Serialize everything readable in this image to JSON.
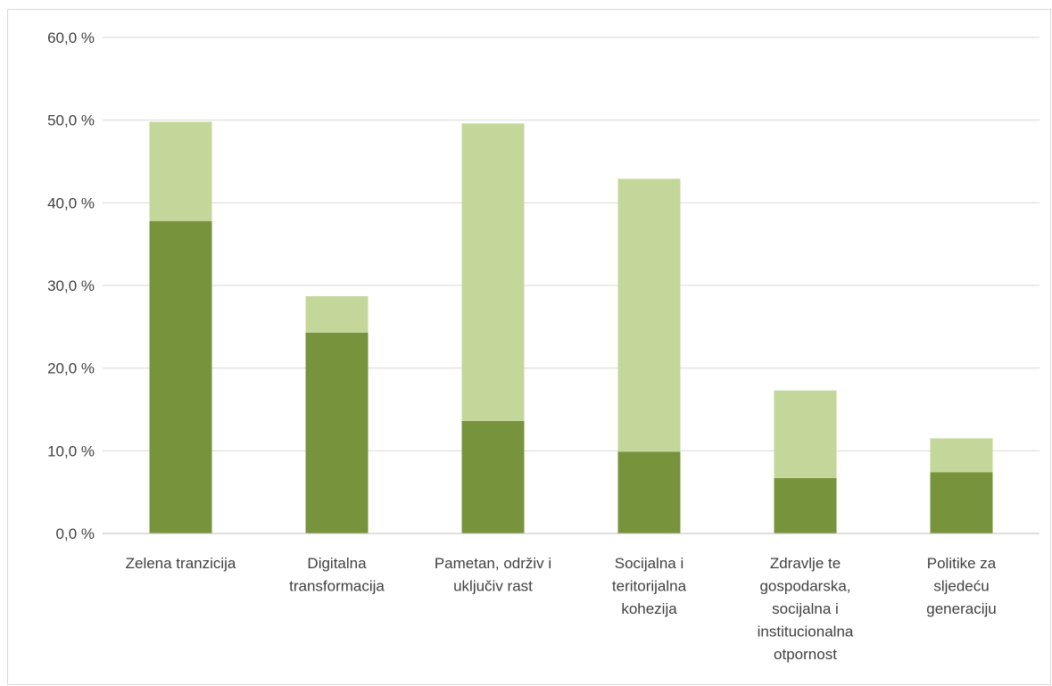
{
  "chart_data": {
    "type": "bar",
    "stacked": true,
    "categories": [
      [
        "Zelena tranzicija"
      ],
      [
        "Digitalna",
        "transformacija"
      ],
      [
        "Pametan, održiv i",
        "uključiv rast"
      ],
      [
        "Socijalna i",
        "teritorijalna",
        "kohezija"
      ],
      [
        "Zdravlje te",
        "gospodarska,",
        "socijalna i",
        "institucionalna",
        "otpornost"
      ],
      [
        "Politike za",
        "sljedeću",
        "generaciju"
      ]
    ],
    "series": [
      {
        "color": "#77933c",
        "values": [
          37.8,
          24.3,
          13.6,
          9.9,
          6.7,
          7.4
        ]
      },
      {
        "color": "#c4d79b",
        "values": [
          12.0,
          4.4,
          36.0,
          33.0,
          10.6,
          4.1
        ]
      }
    ],
    "yticks": [
      "0,0 %",
      "10,0 %",
      "20,0 %",
      "30,0 %",
      "40,0 %",
      "50,0 %",
      "60,0 %"
    ],
    "ylim": [
      0,
      60
    ],
    "grid": true,
    "legend": "none"
  }
}
